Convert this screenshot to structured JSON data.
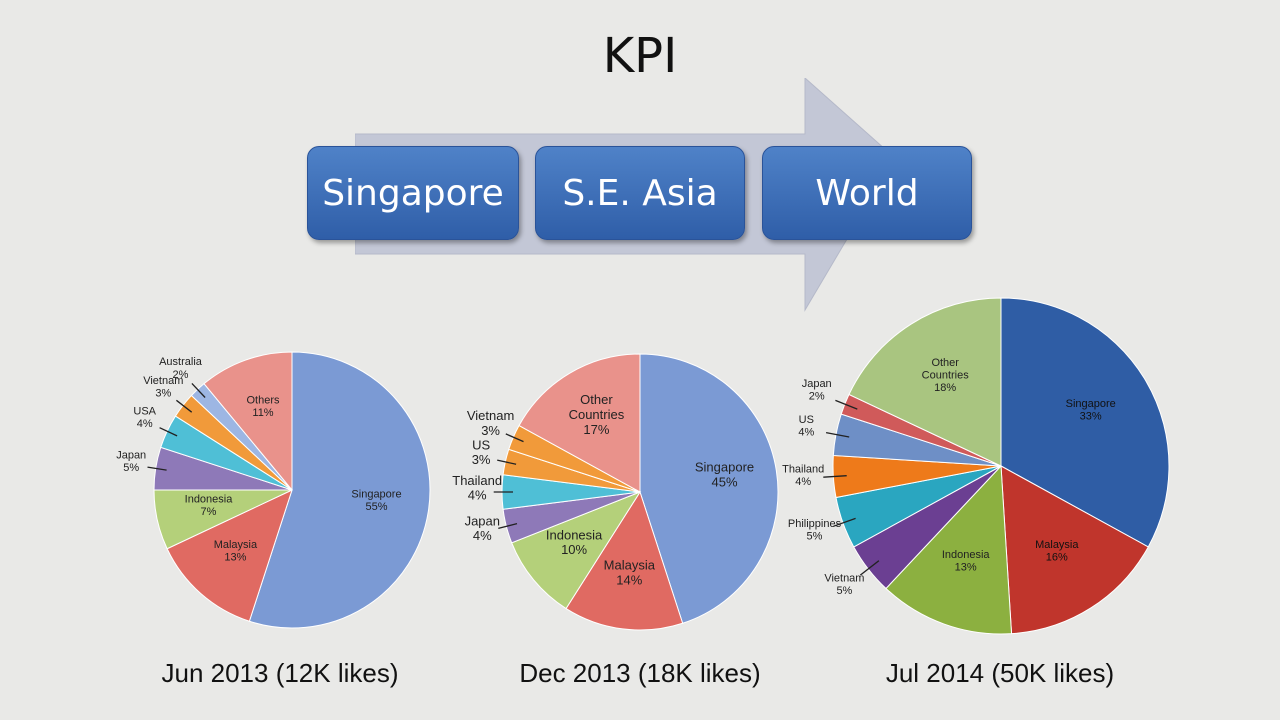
{
  "title": "KPI",
  "stages": [
    "Singapore",
    "S.E. Asia",
    "World"
  ],
  "colors": {
    "Singapore": "#7b9ad4",
    "Malaysia": "#e06a62",
    "Indonesia": "#b4d07a",
    "Japan": "#8e79b8",
    "USA": "#4fbfd6",
    "Vietnam": "#f19a3a",
    "Australia": "#9db6e3",
    "Others": "#e9928b",
    "Thailand": "#4fbfd6",
    "US": "#f19a3a",
    "Other Countries": "#e9928b",
    "Singapore_2014": "#2f5da5",
    "Malaysia_2014": "#c0352c",
    "Indonesia_2014": "#8cb040",
    "Vietnam_2014": "#6b3f92",
    "Philippines_2014": "#2aa6c0",
    "Thailand_2014": "#ee7a1a",
    "US_2014": "#6e8fc6",
    "Japan_2014": "#d05a5a",
    "Other Countries_2014": "#a9c580"
  },
  "chart_data": [
    {
      "type": "pie",
      "title": "Jun 2013 (12K likes)",
      "slices": [
        {
          "label": "Singapore",
          "value": 55,
          "text": "55%"
        },
        {
          "label": "Malaysia",
          "value": 13,
          "text": "13%"
        },
        {
          "label": "Indonesia",
          "value": 7,
          "text": "7%"
        },
        {
          "label": "Japan",
          "value": 5,
          "text": "5%"
        },
        {
          "label": "USA",
          "value": 4,
          "text": "4%"
        },
        {
          "label": "Vietnam",
          "value": 3,
          "text": "3%"
        },
        {
          "label": "Australia",
          "value": 2,
          "text": "2%"
        },
        {
          "label": "Others",
          "value": 11,
          "text": "11%"
        }
      ]
    },
    {
      "type": "pie",
      "title": "Dec 2013 (18K likes)",
      "slices": [
        {
          "label": "Singapore",
          "value": 45,
          "text": "45%"
        },
        {
          "label": "Malaysia",
          "value": 14,
          "text": "14%"
        },
        {
          "label": "Indonesia",
          "value": 10,
          "text": "10%"
        },
        {
          "label": "Japan",
          "value": 4,
          "text": "4%"
        },
        {
          "label": "Thailand",
          "value": 4,
          "text": "4%"
        },
        {
          "label": "US",
          "value": 3,
          "text": "3%"
        },
        {
          "label": "Vietnam",
          "value": 3,
          "text": "3%"
        },
        {
          "label": "Other Countries",
          "value": 17,
          "text": "17%"
        }
      ]
    },
    {
      "type": "pie",
      "title": "Jul 2014 (50K likes)",
      "slices": [
        {
          "label": "Singapore",
          "value": 33,
          "text": "33%"
        },
        {
          "label": "Malaysia",
          "value": 16,
          "text": "16%"
        },
        {
          "label": "Indonesia",
          "value": 13,
          "text": "13%"
        },
        {
          "label": "Vietnam",
          "value": 5,
          "text": "5%"
        },
        {
          "label": "Philippines",
          "value": 5,
          "text": "5%"
        },
        {
          "label": "Thailand",
          "value": 4,
          "text": "4%"
        },
        {
          "label": "US",
          "value": 4,
          "text": "4%"
        },
        {
          "label": "Japan",
          "value": 2,
          "text": "2%"
        },
        {
          "label": "Other Countries",
          "value": 18,
          "text": "18%"
        }
      ]
    }
  ]
}
